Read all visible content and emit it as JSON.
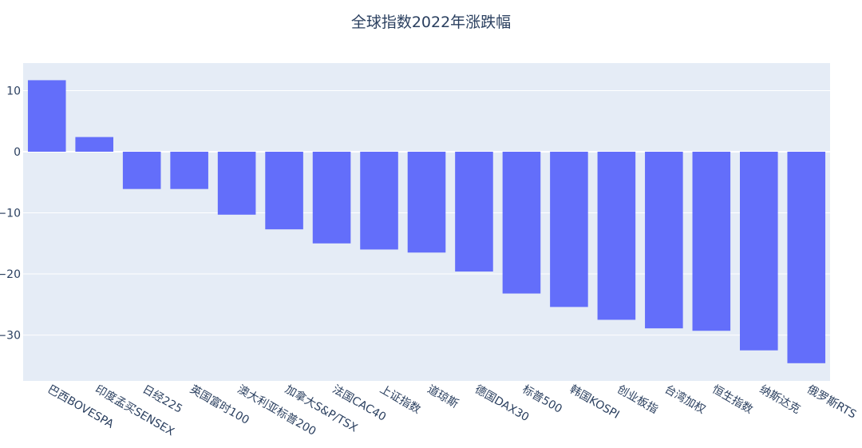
{
  "chart_data": {
    "type": "bar",
    "title": "全球指数2022年涨跌幅",
    "xlabel": "",
    "ylabel": "",
    "categories": [
      "巴西BOVESPA",
      "印度孟买SENSEX",
      "日经225",
      "英国富时100",
      "澳大利亚标普200",
      "加拿大S&P/TSX",
      "法国CAC40",
      "上证指数",
      "道琼斯",
      "德国DAX30",
      "标普500",
      "韩国KOSPI",
      "创业板指",
      "台湾加权",
      "恒生指数",
      "纳斯达克",
      "俄罗斯RTS"
    ],
    "values": [
      11.7,
      2.4,
      -6.1,
      -6.1,
      -10.3,
      -12.7,
      -15.0,
      -16.0,
      -16.5,
      -19.6,
      -23.2,
      -25.4,
      -27.5,
      -28.9,
      -29.3,
      -32.5,
      -34.6
    ],
    "yticks": [
      10,
      0,
      -10,
      -20,
      -30
    ],
    "ytick_labels": [
      "10",
      "0",
      "−10",
      "−20",
      "−30"
    ],
    "ylim": [
      -37.5,
      14.5
    ],
    "grid": true,
    "colors": {
      "bar": "#636efa",
      "plot_bg": "#e5ecf6",
      "grid": "#ffffff",
      "text": "#2a3f5f"
    }
  }
}
